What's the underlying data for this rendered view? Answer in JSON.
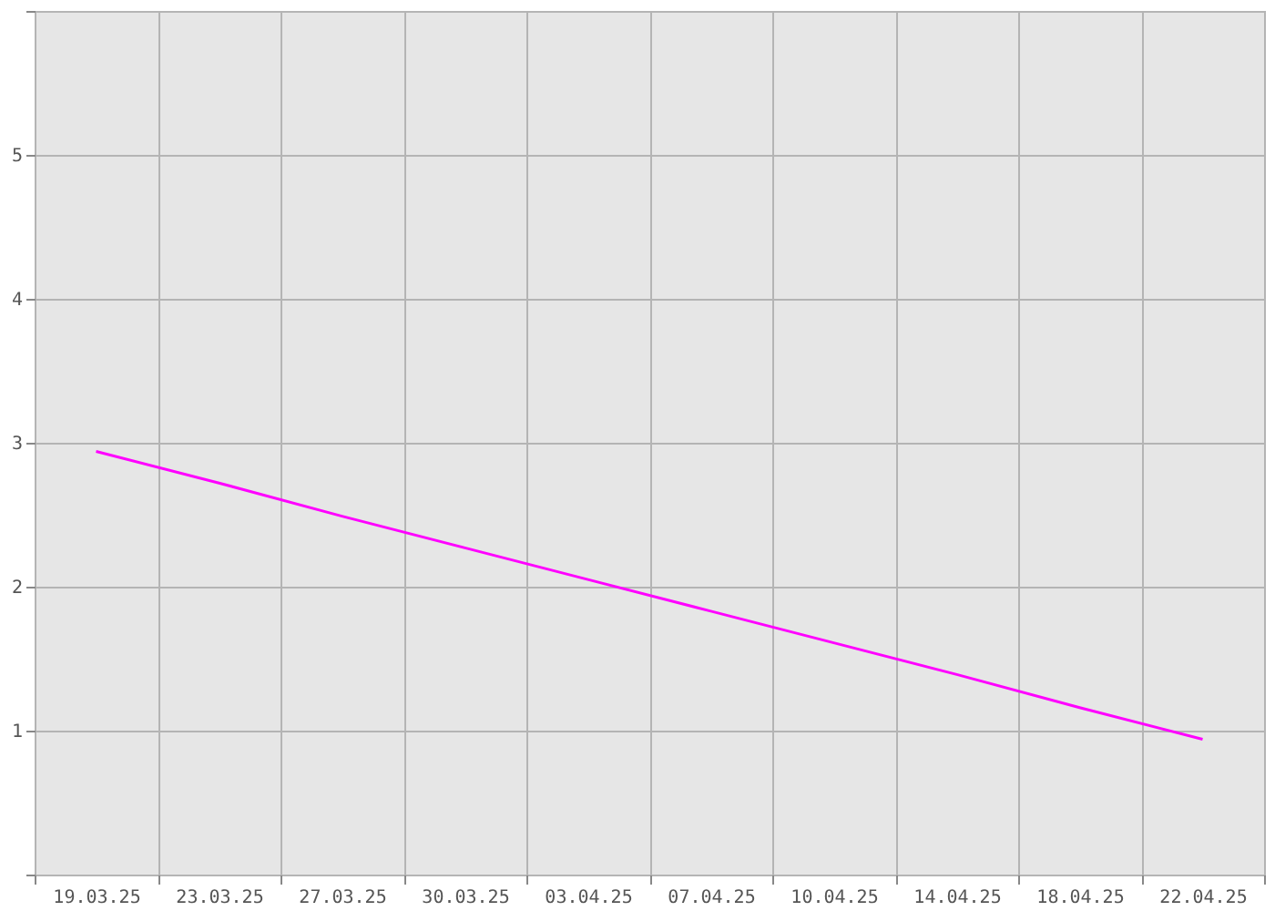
{
  "chart_data": {
    "type": "line",
    "categories": [
      "19.03.25",
      "23.03.25",
      "27.03.25",
      "30.03.25",
      "03.04.25",
      "07.04.25",
      "10.04.25",
      "14.04.25",
      "18.04.25",
      "22.04.25"
    ],
    "series": [
      {
        "color": "#ff00ff",
        "values": [
          2.94,
          2.72,
          2.49,
          2.27,
          2.05,
          1.83,
          1.61,
          1.39,
          1.16,
          0.94
        ]
      }
    ],
    "ylim": [
      0,
      6
    ],
    "yticks": [
      {
        "value": 0,
        "label": null
      },
      1,
      2,
      3,
      4,
      5,
      {
        "value": 6,
        "label": null
      }
    ],
    "grid": true,
    "marker": "none",
    "line_style": "solid"
  }
}
